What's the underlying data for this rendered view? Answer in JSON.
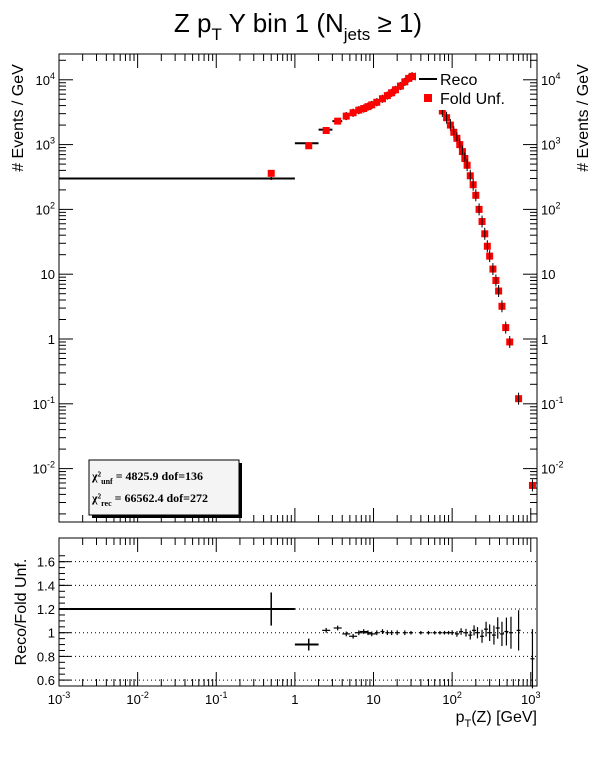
{
  "chart_data": [
    {
      "type": "scatter",
      "title": "Z p_T Y bin 1 (N_jets ≥ 1)",
      "ylabel": "# Events / GeV",
      "ylabel_right": "# Events / GeV",
      "x_scale": "log",
      "y_scale": "log",
      "xlim": [
        0.001,
        1200
      ],
      "ylim": [
        0.0015,
        25000
      ],
      "y_tick_labels": [
        "10^4",
        "10^3",
        "10^2",
        "10",
        "1",
        "10^-1",
        "10^-2"
      ],
      "legend": {
        "position": "top-right",
        "entries": [
          "Reco",
          "Fold Unf."
        ]
      },
      "stats_box": {
        "line1": {
          "symbol": "χ²",
          "sub": "unf",
          "value": "4825.9",
          "dof": "dof=136"
        },
        "line2": {
          "symbol": "χ²",
          "sub": "rec",
          "value": "66562.4",
          "dof": "dof=272"
        }
      },
      "series": [
        {
          "name": "Reco",
          "color": "#000000",
          "style": "error-bars",
          "points": [
            {
              "xlo": 0.001,
              "xhi": 1.0,
              "y": 300,
              "ylo": 285,
              "yhi": 316
            },
            {
              "xlo": 1.0,
              "xhi": 2.0,
              "y": 1050
            },
            {
              "xlo": 2.0,
              "xhi": 3.0,
              "y": 1700
            },
            {
              "xlo": 3.0,
              "xhi": 4.0,
              "y": 2300
            },
            {
              "x": 4.5,
              "y": 2750
            },
            {
              "x": 5.5,
              "y": 3100
            },
            {
              "x": 6.5,
              "y": 3400
            },
            {
              "x": 7.5,
              "y": 3600
            },
            {
              "x": 8.5,
              "y": 3850
            },
            {
              "x": 9.5,
              "y": 4100
            },
            {
              "x": 11,
              "y": 4500
            },
            {
              "x": 13,
              "y": 5100
            },
            {
              "x": 15,
              "y": 5700
            },
            {
              "x": 17,
              "y": 6300
            },
            {
              "x": 19,
              "y": 7000
            },
            {
              "x": 22,
              "y": 8000
            },
            {
              "x": 25,
              "y": 9300
            },
            {
              "x": 28,
              "y": 10500
            },
            {
              "x": 31,
              "y": 11300
            },
            {
              "x": 35,
              "y": 11200
            },
            {
              "x": 40,
              "y": 10000
            }
          ]
        },
        {
          "name": "Fold Unf.",
          "color": "#ff0000",
          "style": "squares",
          "points": [
            {
              "x": 0.5,
              "y": 360
            },
            {
              "x": 1.5,
              "y": 960
            },
            {
              "x": 2.5,
              "y": 1650
            },
            {
              "x": 3.5,
              "y": 2300
            },
            {
              "x": 4.5,
              "y": 2750
            },
            {
              "x": 5.5,
              "y": 3100
            },
            {
              "x": 6.5,
              "y": 3400
            },
            {
              "x": 7.5,
              "y": 3600
            },
            {
              "x": 8.5,
              "y": 3850
            },
            {
              "x": 9.5,
              "y": 4100
            },
            {
              "x": 11,
              "y": 4500
            },
            {
              "x": 13,
              "y": 5100
            },
            {
              "x": 15,
              "y": 5700
            },
            {
              "x": 17,
              "y": 6300
            },
            {
              "x": 19,
              "y": 7000
            },
            {
              "x": 22,
              "y": 8000
            },
            {
              "x": 25,
              "y": 9300
            },
            {
              "x": 28,
              "y": 10500
            },
            {
              "x": 31,
              "y": 11300
            },
            {
              "x": 35,
              "y": 11200
            },
            {
              "x": 40,
              "y": 10000
            },
            {
              "x": 75,
              "y": 3300
            },
            {
              "x": 85,
              "y": 2600
            },
            {
              "x": 95,
              "y": 2000
            },
            {
              "x": 105,
              "y": 1550
            },
            {
              "x": 115,
              "y": 1250
            },
            {
              "x": 125,
              "y": 1000
            },
            {
              "x": 135,
              "y": 780
            },
            {
              "x": 145,
              "y": 610
            },
            {
              "x": 155,
              "y": 480
            },
            {
              "x": 170,
              "y": 330
            },
            {
              "x": 185,
              "y": 240
            },
            {
              "x": 200,
              "y": 165
            },
            {
              "x": 220,
              "y": 100
            },
            {
              "x": 240,
              "y": 65
            },
            {
              "x": 260,
              "y": 42
            },
            {
              "x": 280,
              "y": 27
            },
            {
              "x": 300,
              "y": 19
            },
            {
              "x": 330,
              "y": 12
            },
            {
              "x": 360,
              "y": 8
            },
            {
              "x": 390,
              "y": 5.5
            },
            {
              "x": 430,
              "y": 3.2
            },
            {
              "x": 480,
              "y": 1.5
            },
            {
              "x": 540,
              "y": 0.9
            },
            {
              "x": 700,
              "y": 0.12
            },
            {
              "x": 1050,
              "y": 0.0055
            }
          ]
        }
      ]
    },
    {
      "type": "scatter",
      "ylabel": "Reco/Fold Unf.",
      "xlabel": "p_T(Z) [GeV]",
      "x_scale": "log",
      "xlim": [
        0.001,
        1200
      ],
      "ylim": [
        0.55,
        1.8
      ],
      "x_tick_labels": [
        "10^-3",
        "10^-2",
        "10^-1",
        "1",
        "10",
        "10^2",
        "10^3"
      ],
      "y_tick_labels": [
        "0.6",
        "0.8",
        "1",
        "1.2",
        "1.4",
        "1.6"
      ],
      "grid": "horizontal dotted",
      "series": [
        {
          "name": "",
          "color": "#000000",
          "style": "error-bars",
          "points": [
            {
              "xlo": 0.001,
              "xhi": 1.0,
              "y": 1.2,
              "ylo": 1.06,
              "yhi": 1.34
            },
            {
              "xlo": 1.0,
              "xhi": 2.0,
              "y": 0.9,
              "ylo": 0.85,
              "yhi": 0.95
            },
            {
              "x": 2.5,
              "y": 1.02
            },
            {
              "x": 3.5,
              "y": 1.04
            },
            {
              "x": 4.5,
              "y": 0.99
            },
            {
              "x": 5.5,
              "y": 0.97
            },
            {
              "x": 6.5,
              "y": 1.0
            },
            {
              "x": 7.5,
              "y": 1.01
            },
            {
              "x": 8.5,
              "y": 1.0
            },
            {
              "x": 9.5,
              "y": 0.99
            },
            {
              "x": 11,
              "y": 1.0
            },
            {
              "x": 13,
              "y": 1.01
            },
            {
              "x": 15,
              "y": 1.0
            },
            {
              "x": 17,
              "y": 1.0
            },
            {
              "x": 20,
              "y": 1.0
            },
            {
              "x": 25,
              "y": 1.0
            },
            {
              "x": 30,
              "y": 1.0
            },
            {
              "x": 40,
              "y": 1.0
            },
            {
              "x": 50,
              "y": 1.0
            },
            {
              "x": 60,
              "y": 1.0
            },
            {
              "x": 70,
              "y": 1.0
            },
            {
              "x": 80,
              "y": 1.0
            },
            {
              "x": 90,
              "y": 1.0
            },
            {
              "x": 100,
              "y": 1.0
            },
            {
              "x": 115,
              "y": 0.99
            },
            {
              "x": 130,
              "y": 1.01
            },
            {
              "x": 150,
              "y": 1.0
            },
            {
              "x": 170,
              "y": 0.98
            },
            {
              "x": 190,
              "y": 1.02
            },
            {
              "x": 210,
              "y": 1.0
            },
            {
              "x": 240,
              "y": 0.97
            },
            {
              "x": 270,
              "y": 1.03
            },
            {
              "x": 300,
              "y": 1.0
            },
            {
              "x": 340,
              "y": 0.98
            },
            {
              "x": 380,
              "y": 1.04
            },
            {
              "x": 430,
              "y": 0.99
            },
            {
              "x": 490,
              "y": 1.01
            },
            {
              "x": 560,
              "y": 1.0
            },
            {
              "x": 700,
              "y": 1.02
            },
            {
              "x": 1050,
              "y": 0.78
            }
          ]
        }
      ]
    }
  ]
}
